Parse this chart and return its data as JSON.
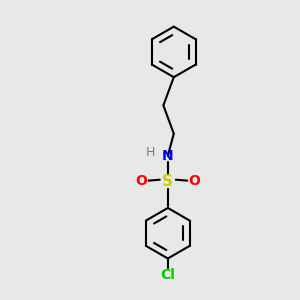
{
  "background_color": "#e8e8e8",
  "bond_color": "#000000",
  "N_color": "#0000ff",
  "S_color": "#cccc00",
  "O_color": "#ff0000",
  "Cl_color": "#00cc00",
  "H_color": "#708090",
  "figsize": [
    3.0,
    3.0
  ],
  "dpi": 100,
  "xlim": [
    0,
    10
  ],
  "ylim": [
    0,
    10
  ]
}
